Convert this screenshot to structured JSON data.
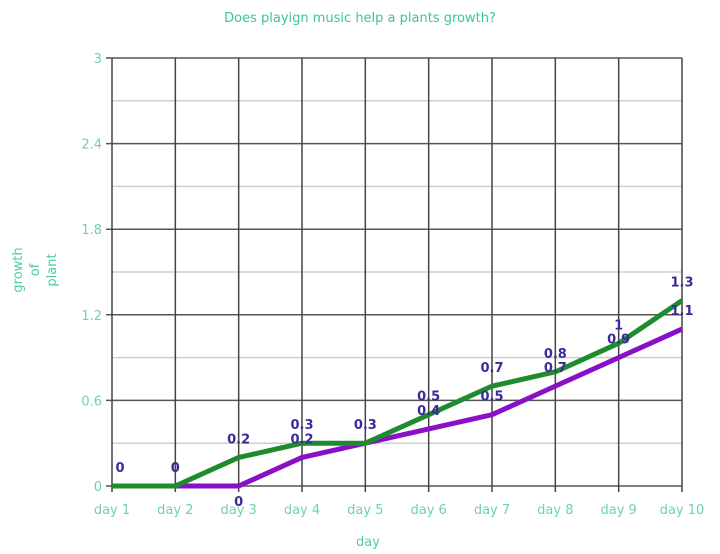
{
  "chart_data": {
    "type": "line",
    "title": "Does playign music help a plants growth?",
    "xlabel": "day",
    "ylabel": [
      "growth",
      "of",
      "plant"
    ],
    "categories": [
      "day 1",
      "day 2",
      "day 3",
      "day 4",
      "day 5",
      "day 6",
      "day 7",
      "day 8",
      "day 9",
      "day 10"
    ],
    "series": [
      {
        "name": "series-green",
        "color": "#1e8c2e",
        "values": [
          0,
          0,
          0.2,
          0.3,
          0.3,
          0.5,
          0.7,
          0.8,
          1,
          1.3
        ],
        "labels": [
          "0",
          "0",
          "0.2",
          "0.3",
          "0.3",
          "0.5",
          "0.7",
          "0.8",
          "1",
          "1.3"
        ]
      },
      {
        "name": "series-purple",
        "color": "#8a10c8",
        "values": [
          0,
          0,
          0,
          0.2,
          0.3,
          0.4,
          0.5,
          0.7,
          0.9,
          1.1
        ],
        "labels": [
          "0",
          "0",
          "0",
          "0.2",
          "0.3",
          "0.4",
          "0.5",
          "0.7",
          "0.9",
          "1.1"
        ]
      }
    ],
    "ylim": [
      0,
      3
    ],
    "yticks": [
      "0",
      "0.6",
      "1.2",
      "1.8",
      "2.4",
      "3"
    ],
    "ytick_values": [
      0,
      0.6,
      1.2,
      1.8,
      2.4,
      3
    ],
    "minor_grid_step": 0.3,
    "grid": true,
    "legend": "none"
  }
}
